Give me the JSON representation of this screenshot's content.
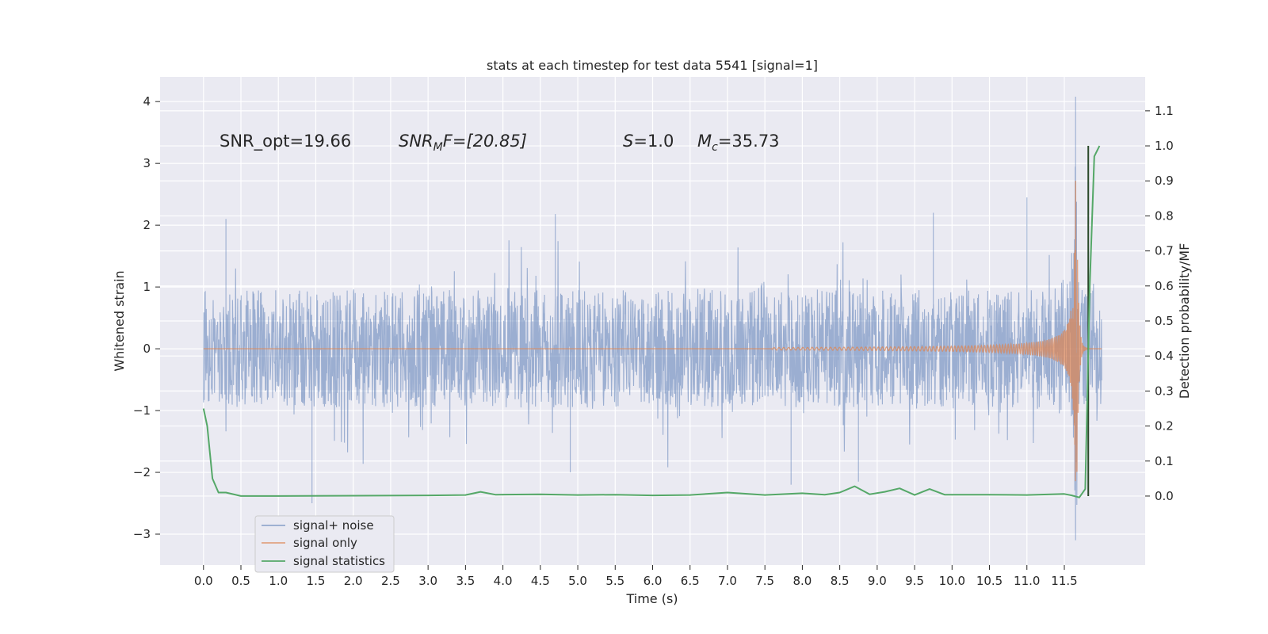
{
  "chart_data": {
    "type": "line",
    "title": "stats at each timestep for test data 5541 [signal=1]",
    "xlabel": "Time (s)",
    "ylabel_left": "Whitened strain",
    "ylabel_right": "Detection probability/MF",
    "xlim": [
      -0.58,
      12.58
    ],
    "ylim_left": [
      -3.5,
      4.4
    ],
    "ylim_right": [
      -0.197,
      1.197
    ],
    "grid": true,
    "legend_position": "lower-left",
    "x_ticks": [
      "0.0",
      "0.5",
      "1.0",
      "1.5",
      "2.0",
      "2.5",
      "3.0",
      "3.5",
      "4.0",
      "4.5",
      "5.0",
      "5.5",
      "6.0",
      "6.5",
      "7.0",
      "7.5",
      "8.0",
      "8.5",
      "9.0",
      "9.5",
      "10.0",
      "10.5",
      "11.0",
      "11.5"
    ],
    "y_ticks_left": [
      "−3",
      "−2",
      "−1",
      "0",
      "1",
      "2",
      "3",
      "4"
    ],
    "y_ticks_right": [
      "0.0",
      "0.1",
      "0.2",
      "0.3",
      "0.4",
      "0.5",
      "0.6",
      "0.7",
      "0.8",
      "0.9",
      "1.0",
      "1.1"
    ],
    "annotations": {
      "snr_opt": "SNR_opt=19.66",
      "snr_mf_main": "SNR",
      "snr_mf_sub": "M",
      "snr_mf_rest": "F=[20.85]",
      "s_main": "S",
      "s_rest": "=1.0",
      "mc_main": "M",
      "mc_sub": "c",
      "mc_rest": "=35.73"
    },
    "series": [
      {
        "name": "signal+ noise",
        "color": "#4c72b0",
        "description_values": "noise band approx ±1.0 with spikes; peak ~4.08 at t=11.65, min ~-3.1 at t=11.65",
        "spikes": [
          [
            0.3,
            2.1
          ],
          [
            1.45,
            -2.5
          ],
          [
            4.7,
            2.18
          ],
          [
            9.75,
            2.2
          ],
          [
            11.0,
            2.45
          ],
          [
            11.65,
            4.08
          ],
          [
            11.65,
            -3.1
          ],
          [
            7.85,
            -2.2
          ],
          [
            8.75,
            -2.15
          ],
          [
            4.9,
            -2.0
          ]
        ]
      },
      {
        "name": "signal only",
        "color": "#dd8452",
        "chirp": {
          "start_time": 7.6,
          "merger_time": 11.66,
          "peak_amplitude": 2.75,
          "min_amplitude": -2.6,
          "end_time": 12.0
        }
      },
      {
        "name": "signal statistics",
        "color": "#55a868",
        "points": [
          [
            0.0,
            0.25
          ],
          [
            0.05,
            0.2
          ],
          [
            0.12,
            0.05
          ],
          [
            0.2,
            0.01
          ],
          [
            0.3,
            0.01
          ],
          [
            0.5,
            0.0
          ],
          [
            1.0,
            0.0
          ],
          [
            2.0,
            0.001
          ],
          [
            3.0,
            0.002
          ],
          [
            3.5,
            0.003
          ],
          [
            3.7,
            0.012
          ],
          [
            3.9,
            0.004
          ],
          [
            4.5,
            0.005
          ],
          [
            5.0,
            0.003
          ],
          [
            5.5,
            0.004
          ],
          [
            6.0,
            0.002
          ],
          [
            6.5,
            0.003
          ],
          [
            7.0,
            0.01
          ],
          [
            7.5,
            0.003
          ],
          [
            8.0,
            0.008
          ],
          [
            8.3,
            0.004
          ],
          [
            8.5,
            0.01
          ],
          [
            8.7,
            0.028
          ],
          [
            8.9,
            0.005
          ],
          [
            9.1,
            0.012
          ],
          [
            9.3,
            0.022
          ],
          [
            9.5,
            0.003
          ],
          [
            9.7,
            0.02
          ],
          [
            9.9,
            0.004
          ],
          [
            10.5,
            0.004
          ],
          [
            11.0,
            0.003
          ],
          [
            11.5,
            0.006
          ],
          [
            11.6,
            0.002
          ],
          [
            11.7,
            -0.004
          ],
          [
            11.78,
            0.02
          ],
          [
            11.84,
            0.6
          ],
          [
            11.9,
            0.97
          ],
          [
            11.97,
            1.0
          ]
        ]
      }
    ],
    "vertical_line": {
      "x": 11.82,
      "y_range": [
        0.0,
        1.0
      ],
      "color": "#2b4a2b"
    }
  }
}
